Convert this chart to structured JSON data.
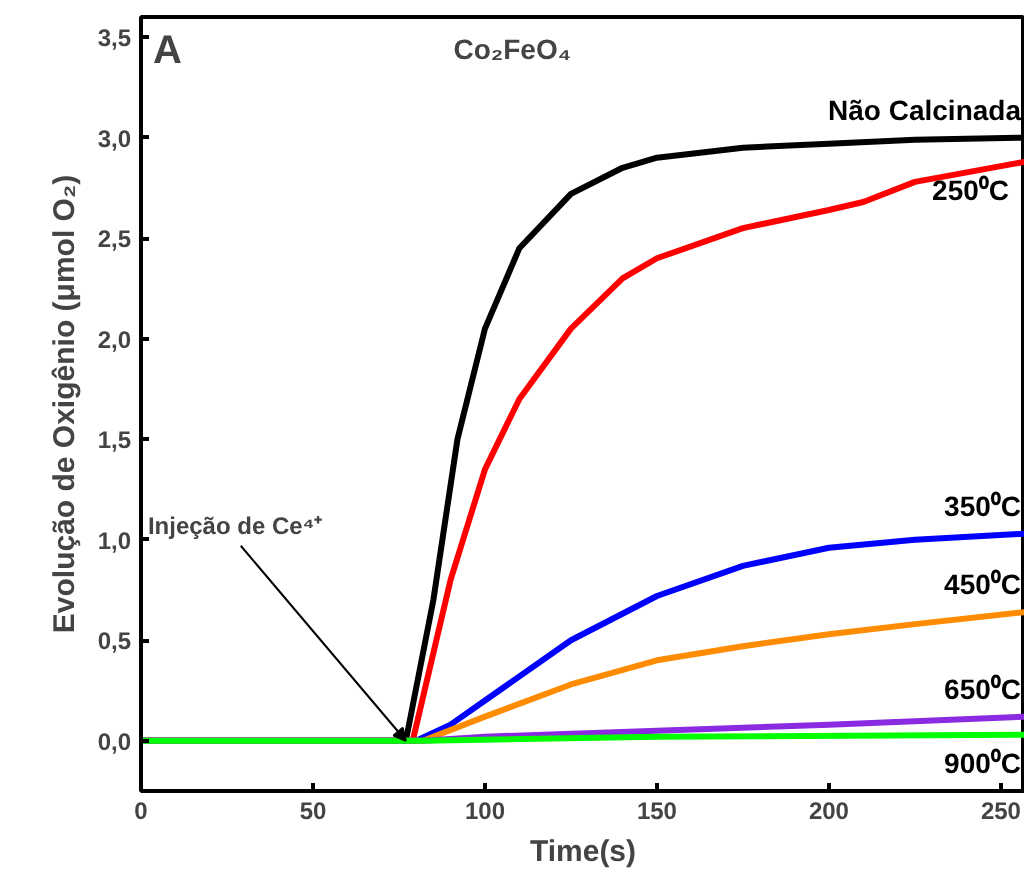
{
  "chart_data": {
    "type": "line",
    "title": "Co₂FeO₄",
    "xlabel": "Time(s)",
    "ylabel": "Evolução de Oxigênio (μmol O₂)",
    "xlim": [
      0,
      257
    ],
    "ylim": [
      -0.25,
      3.6
    ],
    "xticks": [
      0,
      50,
      100,
      150,
      200,
      250
    ],
    "yticks": [
      {
        "value": 0,
        "label": "0,0"
      },
      {
        "value": 0.5,
        "label": "0,5"
      },
      {
        "value": 1,
        "label": "1,0"
      },
      {
        "value": 1.5,
        "label": "1,5"
      },
      {
        "value": 2,
        "label": "2,0"
      },
      {
        "value": 2.5,
        "label": "2,5"
      },
      {
        "value": 3,
        "label": "3,0"
      },
      {
        "value": 3.5,
        "label": "3,5"
      }
    ],
    "grid": false,
    "legend": false,
    "annotations": [
      "A",
      {
        "text": "Injeção de Ce⁴⁺",
        "x": 77,
        "y": 0
      }
    ],
    "series": [
      {
        "name": "Não Calcinada",
        "color": "#000000",
        "x": [
          0,
          77,
          85,
          92,
          100,
          110,
          125,
          140,
          150,
          175,
          200,
          225,
          257
        ],
        "values": [
          0,
          0,
          0.7,
          1.5,
          2.05,
          2.45,
          2.72,
          2.85,
          2.9,
          2.95,
          2.97,
          2.99,
          3.0
        ]
      },
      {
        "name": "250⁰C",
        "color": "#ff0000",
        "x": [
          0,
          79,
          90,
          100,
          110,
          125,
          140,
          150,
          175,
          200,
          210,
          225,
          257
        ],
        "values": [
          0,
          0,
          0.8,
          1.35,
          1.7,
          2.05,
          2.3,
          2.4,
          2.55,
          2.64,
          2.68,
          2.78,
          2.88
        ]
      },
      {
        "name": "350⁰C",
        "color": "#0000ff",
        "x": [
          0,
          80,
          90,
          100,
          125,
          150,
          175,
          200,
          225,
          257
        ],
        "values": [
          0,
          0,
          0.08,
          0.2,
          0.5,
          0.72,
          0.87,
          0.96,
          1.0,
          1.03
        ]
      },
      {
        "name": "450⁰C",
        "color": "#ff8c00",
        "x": [
          0,
          82,
          100,
          125,
          150,
          175,
          200,
          225,
          257
        ],
        "values": [
          0,
          0,
          0.12,
          0.28,
          0.4,
          0.47,
          0.53,
          0.58,
          0.64
        ]
      },
      {
        "name": "650⁰C",
        "color": "#8a2be2",
        "x": [
          0,
          82,
          100,
          150,
          200,
          257
        ],
        "values": [
          0,
          0,
          0.02,
          0.05,
          0.08,
          0.12
        ]
      },
      {
        "name": "900⁰C",
        "color": "#00ff00",
        "x": [
          0,
          82,
          150,
          257
        ],
        "values": [
          0,
          0,
          0.02,
          0.03
        ]
      }
    ]
  }
}
